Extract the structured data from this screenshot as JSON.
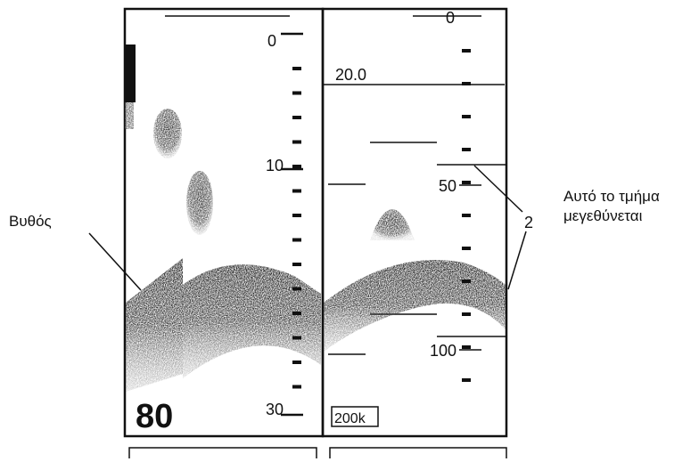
{
  "left_panel": {
    "scale_labels": [
      "0",
      "10",
      "30"
    ],
    "range": "80"
  },
  "right_panel": {
    "scale_labels": [
      "0",
      "50",
      "100"
    ],
    "shift": "20.0",
    "frequency": "200k"
  },
  "callouts": {
    "bottom": "Βυθός",
    "zoom_line1": "Αυτό το τμήμα",
    "zoom_line2": "μεγεθύνεται",
    "zoom_mark": "2"
  }
}
